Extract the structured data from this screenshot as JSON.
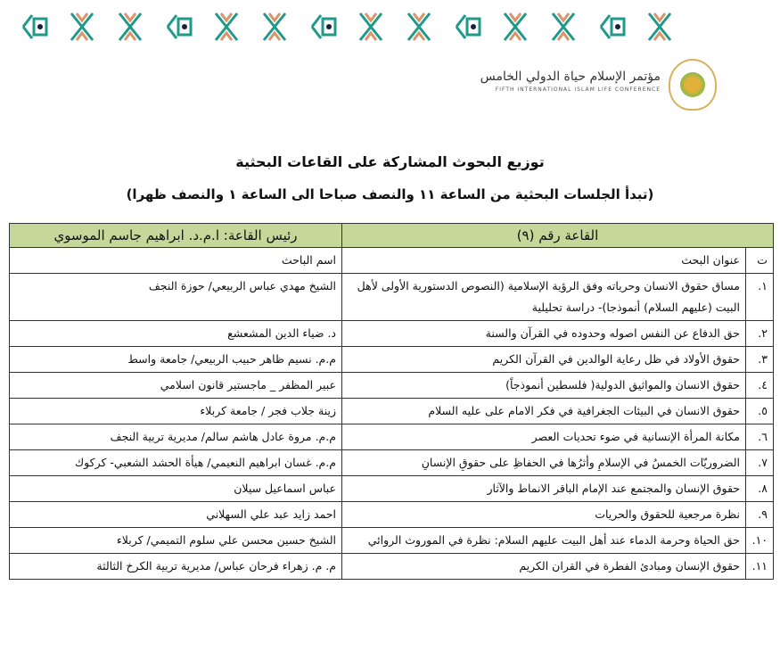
{
  "header": {
    "conference_ar": "مؤتمر الإسلام حياة الدولي الخامس",
    "conference_en": "FIFTH INTERNATIONAL ISLAM LIFE CONFERENCE",
    "colors": {
      "teal": "#1f9a8a",
      "orange": "#d9946a",
      "navy": "#1b1f3b",
      "header_green": "#c5d89a"
    }
  },
  "title": "توزيع البحوث المشاركة على القاعات البحثية",
  "subtitle": "(تبدأ الجلسات البحثية من الساعة ١١ والنصف صباحا الى الساعة ١ والنصف ظهرا)",
  "table": {
    "hall": "القاعة رقم (٩)",
    "chair": "رئيس القاعة: ا.م.د. ابراهيم جاسم الموسوي",
    "col_num": "ت",
    "col_title": "عنوان البحث",
    "col_name": "اسم الباحث",
    "rows": [
      {
        "n": "١.",
        "title": "مساق حقوق الانسان وحرياته وفق الرؤية الإسلامية (النصوص الدستورية الأولى لأهل البيت (عليهم السلام) أنموذجا)- دراسة تحليلية",
        "name": "الشيخ مهدي عباس الربيعي/ حوزة النجف"
      },
      {
        "n": "٢.",
        "title": "حق الدفاع عن النفس اصوله وحدوده في القرآن والسنة",
        "name": "د. ضياء الدين المشعشع"
      },
      {
        "n": "٣.",
        "title": "حقوق الأولاد في ظل رعاية الوالدين في القرآن الكريم",
        "name": "م.م. نسيم ظاهر حبيب الربيعي/ جامعة واسط"
      },
      {
        "n": "٤.",
        "title": "حقوق الانسان والمواثيق الدولية( فلسطين أنموذجاً)",
        "name": "عبير المظفر _ ماجستير قانون اسلامي"
      },
      {
        "n": "٥.",
        "title": "حقوق الانسان في البيئات الجغرافية في فكر الامام على عليه السلام",
        "name": "زينة جلاب فجر / جامعة كربلاء"
      },
      {
        "n": "٦.",
        "title": "مكانة المرأة الإنسانية في ضوء تحديات العصر",
        "name": "م.م. مروة عادل هاشم سالم/ مديرية تربية النجف"
      },
      {
        "n": "٧.",
        "title": "الضروريّات الخمسُ في الإسلامِ وأثرُها في الحفاظِ على حقوقِ الإنسانِ",
        "name": "م.م. غسان ابراهيم النعيمي/ هيأة الحشد الشعبي- كركوك"
      },
      {
        "n": "٨.",
        "title": "حقوق الإنسان والمجتمع عند الإمام الباقر الانماط والآثار",
        "name": "عباس اسماعيل سيلان"
      },
      {
        "n": "٩.",
        "title": "نظرة مرجعية للحقوق والحريات",
        "name": "احمد زايد عبد علي السهلاني"
      },
      {
        "n": "١٠.",
        "title": "حق الحياة وحرمة الدماء عند أهل البيت عليهم السلام: نظرة في الموروث الروائي",
        "name": "الشيخ حسين محسن علي سلوم التميمي/ كربلاء"
      },
      {
        "n": "١١.",
        "title": "حقوق الإنسان ومبادئ الفطرة في القران الكريم",
        "name": "م. م. زهراء فرحان عباس/ مديرية تربية الكرخ الثالثة"
      }
    ]
  }
}
